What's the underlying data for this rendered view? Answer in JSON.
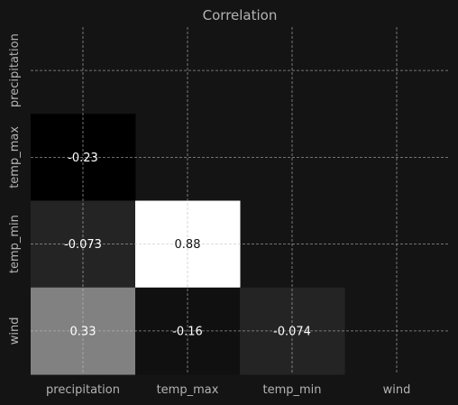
{
  "chart_data": {
    "type": "heatmap",
    "title": "Correlation",
    "variables": [
      "precipitation",
      "temp_max",
      "temp_min",
      "wind"
    ],
    "matrix": [
      [
        null,
        null,
        null,
        null
      ],
      [
        -0.23,
        null,
        null,
        null
      ],
      [
        -0.073,
        0.88,
        null,
        null
      ],
      [
        0.33,
        -0.16,
        -0.074,
        null
      ]
    ],
    "cell_labels": [
      [
        null,
        null,
        null,
        null
      ],
      [
        "-0.23",
        null,
        null,
        null
      ],
      [
        "-0.073",
        "0.88",
        null,
        null
      ],
      [
        "0.33",
        "-0.16",
        "-0.074",
        null
      ]
    ],
    "mask": "upper-triangle-and-diagonal",
    "colormap": "gray",
    "vmin": -0.23,
    "vmax": 0.88,
    "grid": true,
    "colors": {
      "background": "#141414",
      "text": "#b3b3b3",
      "grid": "#bdbdbd"
    }
  }
}
